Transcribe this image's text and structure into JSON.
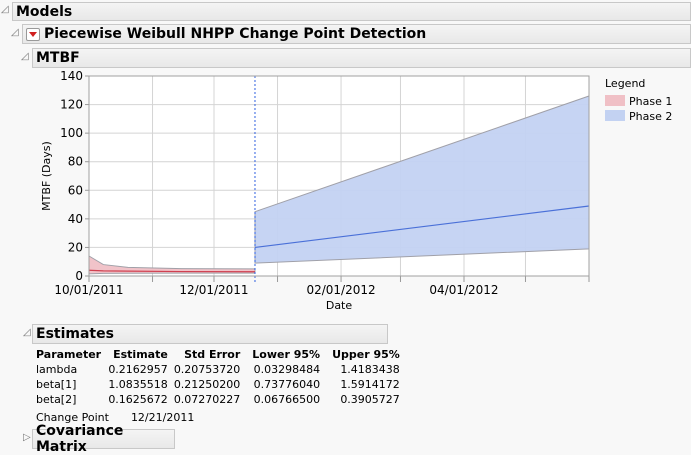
{
  "sections": {
    "models": "Models",
    "report": "Piecewise Weibull NHPP Change Point Detection",
    "mtbf": "MTBF",
    "estimates": "Estimates",
    "covariance": "Covariance Matrix"
  },
  "icons": {
    "disclosure": "disclosure-triangle-icon",
    "menu": "red-triangle-menu-icon"
  },
  "chart_data": {
    "type": "area",
    "title": "",
    "xlabel": "Date",
    "ylabel": "MTBF (Days)",
    "xlim": [
      "2011-10-01",
      "2012-06-01"
    ],
    "ylim": [
      0,
      140
    ],
    "yticks": [
      0,
      20,
      40,
      60,
      80,
      100,
      120,
      140
    ],
    "xticks": [
      {
        "date": "2011-10-01",
        "label": "10/01/2011"
      },
      {
        "date": "2011-12-01",
        "label": "12/01/2011"
      },
      {
        "date": "2012-02-01",
        "label": "02/01/2012"
      },
      {
        "date": "2012-04-01",
        "label": "04/01/2012"
      }
    ],
    "grid": true,
    "change_point": "2011-12-21",
    "legend": {
      "title": "Legend",
      "placement": "right"
    },
    "series": [
      {
        "name": "Phase 1",
        "fill": "#f0c0c6",
        "line": "#d04050",
        "points": [
          {
            "date": "2011-10-01",
            "mtbf": 4,
            "lower": 1.5,
            "upper": 14
          },
          {
            "date": "2011-10-08",
            "mtbf": 3.6,
            "lower": 1.8,
            "upper": 8
          },
          {
            "date": "2011-10-20",
            "mtbf": 3.4,
            "lower": 1.9,
            "upper": 6
          },
          {
            "date": "2011-11-15",
            "mtbf": 3.1,
            "lower": 2,
            "upper": 5.2
          },
          {
            "date": "2011-12-21",
            "mtbf": 3,
            "lower": 2,
            "upper": 5
          }
        ]
      },
      {
        "name": "Phase 2",
        "fill": "#c3d2f2",
        "line": "#4a70d8",
        "points": [
          {
            "date": "2011-12-21",
            "mtbf": 20,
            "lower": 9,
            "upper": 45
          },
          {
            "date": "2012-06-01",
            "mtbf": 49,
            "lower": 19,
            "upper": 126
          }
        ]
      }
    ]
  },
  "estimates": {
    "headers": [
      "Parameter",
      "Estimate",
      "Std Error",
      "Lower 95%",
      "Upper 95%"
    ],
    "rows": [
      [
        "lambda",
        "0.2162957",
        "0.20753720",
        "0.03298484",
        "1.4183438"
      ],
      [
        "beta[1]",
        "1.0835518",
        "0.21250200",
        "0.73776040",
        "1.5914172"
      ],
      [
        "beta[2]",
        "0.1625672",
        "0.07270227",
        "0.06766500",
        "0.3905727"
      ]
    ],
    "change_point_label": "Change Point",
    "change_point_value": "12/21/2011"
  }
}
